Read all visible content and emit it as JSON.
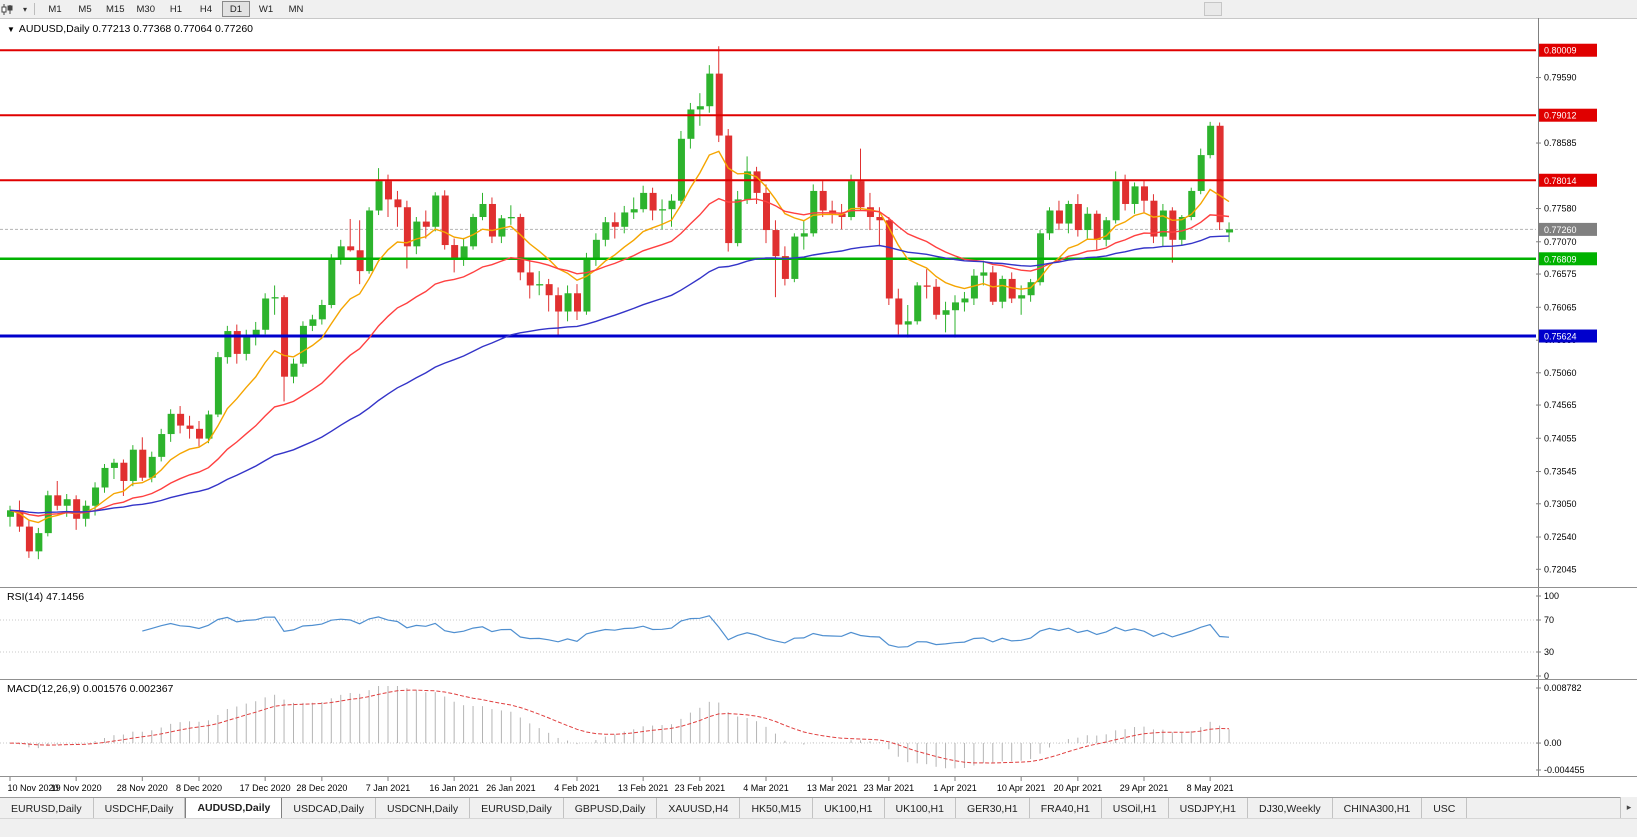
{
  "icons": {
    "dropdown": "▾",
    "symbol_marker": "▼",
    "tab_scroll_right": "▸"
  },
  "toolbar": {
    "timeframes": [
      {
        "label": "M1",
        "active": false
      },
      {
        "label": "M5",
        "active": false
      },
      {
        "label": "M15",
        "active": false
      },
      {
        "label": "M30",
        "active": false
      },
      {
        "label": "H1",
        "active": false
      },
      {
        "label": "H4",
        "active": false
      },
      {
        "label": "D1",
        "active": true
      },
      {
        "label": "W1",
        "active": false
      },
      {
        "label": "MN",
        "active": false
      }
    ]
  },
  "chart_header": {
    "symbol": "AUDUSD,Daily",
    "ohlc": "0.77213 0.77368 0.77064 0.77260"
  },
  "chart_data": {
    "type": "candlestick",
    "symbol": "AUDUSD",
    "timeframe": "Daily",
    "ohlc_display": {
      "open": "0.77213",
      "high": "0.77368",
      "low": "0.77064",
      "close": "0.77260"
    },
    "colors": {
      "up": "#2db32d",
      "down": "#e03030",
      "background": "#ffffff"
    },
    "price_axis": {
      "ylim": [
        0.7185,
        0.8035
      ],
      "ticks": [
        "0.79590",
        "0.78585",
        "0.77580",
        "0.77070",
        "0.76575",
        "0.76065",
        "0.75560",
        "0.75060",
        "0.74565",
        "0.74055",
        "0.73545",
        "0.73050",
        "0.72540",
        "0.72045"
      ]
    },
    "hlines": [
      {
        "price": 0.80009,
        "label": "0.80009",
        "color": "#e00000",
        "width": 2
      },
      {
        "price": 0.79012,
        "label": "0.79012",
        "color": "#e00000",
        "width": 2
      },
      {
        "price": 0.78014,
        "label": "0.78014",
        "color": "#e00000",
        "width": 2
      },
      {
        "price": 0.76809,
        "label": "0.76809",
        "color": "#00b200",
        "width": 2.5
      },
      {
        "price": 0.75624,
        "label": "0.75624",
        "color": "#0000cc",
        "width": 3
      }
    ],
    "current_price": {
      "price": 0.7726,
      "label": "0.77260",
      "box_color": "#808080"
    },
    "moving_averages": [
      {
        "period": 10,
        "color": "#f5a500"
      },
      {
        "period": 25,
        "color": "#ff4040"
      },
      {
        "period": 60,
        "color": "#3434c8"
      }
    ],
    "rsi": {
      "name": "RSI(14)",
      "value": "47.1456",
      "period": 14,
      "color": "#4f8fd0",
      "levels": [
        "100",
        "70",
        "30",
        "0"
      ]
    },
    "macd": {
      "name": "MACD(12,26,9)",
      "values": "0.001576 0.002367",
      "fast": 12,
      "slow": 26,
      "signal": 9,
      "ymax": 0.008782,
      "ymin": -0.004455,
      "axis_labels": [
        "0.008782",
        "0.00",
        "-0.004455"
      ]
    },
    "date_labels": [
      {
        "label": "10 Nov 2020",
        "index": 0
      },
      {
        "label": "19 Nov 2020",
        "index": 7
      },
      {
        "label": "28 Nov 2020",
        "index": 14
      },
      {
        "label": "8 Dec 2020",
        "index": 20
      },
      {
        "label": "17 Dec 2020",
        "index": 27
      },
      {
        "label": "28 Dec 2020",
        "index": 33
      },
      {
        "label": "7 Jan 2021",
        "index": 40
      },
      {
        "label": "16 Jan 2021",
        "index": 47
      },
      {
        "label": "26 Jan 2021",
        "index": 53
      },
      {
        "label": "4 Feb 2021",
        "index": 60
      },
      {
        "label": "13 Feb 2021",
        "index": 67
      },
      {
        "label": "23 Feb 2021",
        "index": 73
      },
      {
        "label": "4 Mar 2021",
        "index": 80
      },
      {
        "label": "13 Mar 2021",
        "index": 87
      },
      {
        "label": "23 Mar 2021",
        "index": 93
      },
      {
        "label": "1 Apr 2021",
        "index": 100
      },
      {
        "label": "10 Apr 2021",
        "index": 107
      },
      {
        "label": "20 Apr 2021",
        "index": 113
      },
      {
        "label": "29 Apr 2021",
        "index": 120
      },
      {
        "label": "8 May 2021",
        "index": 127
      }
    ],
    "candles": [
      [
        "2020-11-10",
        0.7285,
        0.7302,
        0.727,
        0.7295
      ],
      [
        "2020-11-11",
        0.7295,
        0.731,
        0.7262,
        0.727
      ],
      [
        "2020-11-12",
        0.727,
        0.728,
        0.7222,
        0.7232
      ],
      [
        "2020-11-13",
        0.7232,
        0.7268,
        0.722,
        0.726
      ],
      [
        "2020-11-16",
        0.726,
        0.7325,
        0.7255,
        0.7318
      ],
      [
        "2020-11-17",
        0.7318,
        0.734,
        0.7295,
        0.7302
      ],
      [
        "2020-11-18",
        0.7302,
        0.732,
        0.7285,
        0.7312
      ],
      [
        "2020-11-19",
        0.7312,
        0.7318,
        0.7265,
        0.7282
      ],
      [
        "2020-11-20",
        0.7282,
        0.731,
        0.727,
        0.7302
      ],
      [
        "2020-11-23",
        0.7302,
        0.7338,
        0.7287,
        0.733
      ],
      [
        "2020-11-24",
        0.733,
        0.7366,
        0.7322,
        0.736
      ],
      [
        "2020-11-25",
        0.736,
        0.7374,
        0.7343,
        0.7368
      ],
      [
        "2020-11-26",
        0.7368,
        0.7373,
        0.7317,
        0.734
      ],
      [
        "2020-11-27",
        0.734,
        0.7395,
        0.7332,
        0.7388
      ],
      [
        "2020-11-30",
        0.7388,
        0.7407,
        0.734,
        0.7345
      ],
      [
        "2020-12-01",
        0.7345,
        0.7385,
        0.7338,
        0.7377
      ],
      [
        "2020-12-02",
        0.7377,
        0.742,
        0.737,
        0.7412
      ],
      [
        "2020-12-03",
        0.7412,
        0.745,
        0.74,
        0.7443
      ],
      [
        "2020-12-04",
        0.7443,
        0.7455,
        0.7413,
        0.7425
      ],
      [
        "2020-12-07",
        0.7425,
        0.744,
        0.7405,
        0.742
      ],
      [
        "2020-12-08",
        0.742,
        0.7432,
        0.7393,
        0.7405
      ],
      [
        "2020-12-09",
        0.7405,
        0.7448,
        0.7398,
        0.7442
      ],
      [
        "2020-12-10",
        0.7442,
        0.7538,
        0.7438,
        0.753
      ],
      [
        "2020-12-11",
        0.753,
        0.7578,
        0.752,
        0.757
      ],
      [
        "2020-12-14",
        0.757,
        0.758,
        0.752,
        0.7535
      ],
      [
        "2020-12-15",
        0.7535,
        0.7572,
        0.7525,
        0.7562
      ],
      [
        "2020-12-16",
        0.7562,
        0.7584,
        0.7548,
        0.7572
      ],
      [
        "2020-12-17",
        0.7572,
        0.7628,
        0.7565,
        0.762
      ],
      [
        "2020-12-18",
        0.762,
        0.764,
        0.7595,
        0.7622
      ],
      [
        "2020-12-21",
        0.7622,
        0.7625,
        0.7462,
        0.75
      ],
      [
        "2020-12-22",
        0.75,
        0.7528,
        0.749,
        0.752
      ],
      [
        "2020-12-23",
        0.752,
        0.7585,
        0.7515,
        0.7578
      ],
      [
        "2020-12-24",
        0.7578,
        0.7595,
        0.757,
        0.7588
      ],
      [
        "2020-12-28",
        0.7588,
        0.7618,
        0.758,
        0.761
      ],
      [
        "2020-12-29",
        0.761,
        0.7688,
        0.7605,
        0.768
      ],
      [
        "2020-12-30",
        0.768,
        0.771,
        0.7672,
        0.77
      ],
      [
        "2020-12-31",
        0.77,
        0.7742,
        0.7692,
        0.7694
      ],
      [
        "2021-01-04",
        0.7694,
        0.774,
        0.7642,
        0.7662
      ],
      [
        "2021-01-05",
        0.7662,
        0.776,
        0.7658,
        0.7755
      ],
      [
        "2021-01-06",
        0.7755,
        0.782,
        0.7748,
        0.78
      ],
      [
        "2021-01-07",
        0.78,
        0.781,
        0.7745,
        0.7772
      ],
      [
        "2021-01-08",
        0.7772,
        0.7785,
        0.773,
        0.776
      ],
      [
        "2021-01-11",
        0.776,
        0.777,
        0.7666,
        0.77
      ],
      [
        "2021-01-12",
        0.77,
        0.7745,
        0.7688,
        0.7738
      ],
      [
        "2021-01-13",
        0.7738,
        0.7755,
        0.7712,
        0.773
      ],
      [
        "2021-01-14",
        0.773,
        0.7783,
        0.7723,
        0.7778
      ],
      [
        "2021-01-15",
        0.7778,
        0.7786,
        0.7695,
        0.7702
      ],
      [
        "2021-01-18",
        0.7702,
        0.7712,
        0.766,
        0.768
      ],
      [
        "2021-01-19",
        0.768,
        0.7713,
        0.767,
        0.77
      ],
      [
        "2021-01-20",
        0.77,
        0.775,
        0.7695,
        0.7745
      ],
      [
        "2021-01-21",
        0.7745,
        0.7782,
        0.774,
        0.7765
      ],
      [
        "2021-01-22",
        0.7765,
        0.7775,
        0.7705,
        0.7715
      ],
      [
        "2021-01-25",
        0.7715,
        0.7748,
        0.7705,
        0.7743
      ],
      [
        "2021-01-26",
        0.7743,
        0.7763,
        0.7733,
        0.7745
      ],
      [
        "2021-01-27",
        0.7745,
        0.775,
        0.7648,
        0.766
      ],
      [
        "2021-01-28",
        0.766,
        0.768,
        0.762,
        0.764
      ],
      [
        "2021-01-29",
        0.764,
        0.7662,
        0.7625,
        0.7642
      ],
      [
        "2021-02-01",
        0.7642,
        0.765,
        0.76,
        0.7625
      ],
      [
        "2021-02-02",
        0.7625,
        0.7637,
        0.7563,
        0.76
      ],
      [
        "2021-02-03",
        0.76,
        0.764,
        0.7585,
        0.7628
      ],
      [
        "2021-02-04",
        0.7628,
        0.7642,
        0.7587,
        0.76
      ],
      [
        "2021-02-05",
        0.76,
        0.769,
        0.7595,
        0.768
      ],
      [
        "2021-02-08",
        0.768,
        0.772,
        0.767,
        0.771
      ],
      [
        "2021-02-09",
        0.771,
        0.7745,
        0.77,
        0.7737
      ],
      [
        "2021-02-10",
        0.7737,
        0.7752,
        0.7712,
        0.773
      ],
      [
        "2021-02-11",
        0.773,
        0.7762,
        0.772,
        0.7752
      ],
      [
        "2021-02-12",
        0.7752,
        0.7775,
        0.7742,
        0.7757
      ],
      [
        "2021-02-15",
        0.7757,
        0.7793,
        0.7752,
        0.7782
      ],
      [
        "2021-02-16",
        0.7782,
        0.779,
        0.774,
        0.7755
      ],
      [
        "2021-02-17",
        0.7755,
        0.7772,
        0.7726,
        0.7757
      ],
      [
        "2021-02-18",
        0.7757,
        0.778,
        0.773,
        0.777
      ],
      [
        "2021-02-19",
        0.777,
        0.7877,
        0.7765,
        0.7865
      ],
      [
        "2021-02-22",
        0.7865,
        0.792,
        0.785,
        0.791
      ],
      [
        "2021-02-23",
        0.791,
        0.7935,
        0.7885,
        0.7915
      ],
      [
        "2021-02-24",
        0.7915,
        0.7978,
        0.7905,
        0.7965
      ],
      [
        "2021-02-25",
        0.7965,
        0.8007,
        0.786,
        0.787
      ],
      [
        "2021-02-26",
        0.787,
        0.788,
        0.7692,
        0.7705
      ],
      [
        "2021-03-01",
        0.7705,
        0.7785,
        0.77,
        0.7772
      ],
      [
        "2021-03-02",
        0.7772,
        0.7838,
        0.7765,
        0.7815
      ],
      [
        "2021-03-03",
        0.7815,
        0.7822,
        0.7765,
        0.7782
      ],
      [
        "2021-03-04",
        0.7782,
        0.7795,
        0.7705,
        0.7725
      ],
      [
        "2021-03-05",
        0.7725,
        0.774,
        0.7622,
        0.7685
      ],
      [
        "2021-03-08",
        0.7685,
        0.77,
        0.764,
        0.765
      ],
      [
        "2021-03-09",
        0.765,
        0.772,
        0.7645,
        0.7715
      ],
      [
        "2021-03-10",
        0.7715,
        0.774,
        0.7695,
        0.772
      ],
      [
        "2021-03-11",
        0.772,
        0.7795,
        0.7715,
        0.7785
      ],
      [
        "2021-03-12",
        0.7785,
        0.78,
        0.7745,
        0.7755
      ],
      [
        "2021-03-15",
        0.7755,
        0.777,
        0.7735,
        0.775
      ],
      [
        "2021-03-16",
        0.775,
        0.7765,
        0.7726,
        0.7745
      ],
      [
        "2021-03-17",
        0.7745,
        0.781,
        0.774,
        0.78
      ],
      [
        "2021-03-18",
        0.78,
        0.785,
        0.7755,
        0.776
      ],
      [
        "2021-03-19",
        0.776,
        0.7782,
        0.7725,
        0.7745
      ],
      [
        "2021-03-22",
        0.7745,
        0.776,
        0.77,
        0.774
      ],
      [
        "2021-03-23",
        0.774,
        0.7745,
        0.761,
        0.762
      ],
      [
        "2021-03-24",
        0.762,
        0.7635,
        0.7565,
        0.758
      ],
      [
        "2021-03-25",
        0.758,
        0.761,
        0.756,
        0.7585
      ],
      [
        "2021-03-26",
        0.7585,
        0.7645,
        0.758,
        0.764
      ],
      [
        "2021-03-29",
        0.764,
        0.7665,
        0.762,
        0.7638
      ],
      [
        "2021-03-30",
        0.7638,
        0.765,
        0.7588,
        0.7595
      ],
      [
        "2021-03-31",
        0.7595,
        0.7615,
        0.7568,
        0.7602
      ],
      [
        "2021-04-01",
        0.7602,
        0.7625,
        0.756,
        0.7614
      ],
      [
        "2021-04-02",
        0.7614,
        0.763,
        0.76,
        0.762
      ],
      [
        "2021-04-05",
        0.762,
        0.7665,
        0.761,
        0.7655
      ],
      [
        "2021-04-06",
        0.7655,
        0.7678,
        0.764,
        0.766
      ],
      [
        "2021-04-07",
        0.766,
        0.767,
        0.761,
        0.7615
      ],
      [
        "2021-04-08",
        0.7615,
        0.7655,
        0.7605,
        0.765
      ],
      [
        "2021-04-09",
        0.765,
        0.766,
        0.7613,
        0.762
      ],
      [
        "2021-04-12",
        0.762,
        0.764,
        0.7595,
        0.7625
      ],
      [
        "2021-04-13",
        0.7625,
        0.765,
        0.7615,
        0.7645
      ],
      [
        "2021-04-14",
        0.7645,
        0.7725,
        0.764,
        0.772
      ],
      [
        "2021-04-15",
        0.772,
        0.776,
        0.771,
        0.7755
      ],
      [
        "2021-04-16",
        0.7755,
        0.777,
        0.7725,
        0.7735
      ],
      [
        "2021-04-19",
        0.7735,
        0.777,
        0.772,
        0.7765
      ],
      [
        "2021-04-20",
        0.7765,
        0.778,
        0.7715,
        0.7725
      ],
      [
        "2021-04-21",
        0.7725,
        0.776,
        0.771,
        0.775
      ],
      [
        "2021-04-22",
        0.775,
        0.7755,
        0.7695,
        0.771
      ],
      [
        "2021-04-23",
        0.771,
        0.7745,
        0.77,
        0.774
      ],
      [
        "2021-04-26",
        0.774,
        0.7815,
        0.7735,
        0.78
      ],
      [
        "2021-04-27",
        0.78,
        0.781,
        0.7755,
        0.7765
      ],
      [
        "2021-04-28",
        0.7765,
        0.7798,
        0.775,
        0.7792
      ],
      [
        "2021-04-29",
        0.7792,
        0.78,
        0.7752,
        0.777
      ],
      [
        "2021-04-30",
        0.777,
        0.778,
        0.7705,
        0.7715
      ],
      [
        "2021-05-03",
        0.7715,
        0.7765,
        0.77,
        0.7755
      ],
      [
        "2021-05-04",
        0.7755,
        0.776,
        0.7675,
        0.771
      ],
      [
        "2021-05-05",
        0.771,
        0.7748,
        0.7702,
        0.7745
      ],
      [
        "2021-05-06",
        0.7745,
        0.779,
        0.774,
        0.7785
      ],
      [
        "2021-05-07",
        0.7785,
        0.785,
        0.778,
        0.784
      ],
      [
        "2021-05-10",
        0.784,
        0.7891,
        0.7835,
        0.7885
      ],
      [
        "2021-05-11",
        0.7885,
        0.789,
        0.7725,
        0.7737
      ],
      [
        "2021-05-12",
        0.77213,
        0.77368,
        0.77064,
        0.7726
      ]
    ]
  },
  "tabs": {
    "items": [
      {
        "label": "EURUSD,Daily",
        "active": false
      },
      {
        "label": "USDCHF,Daily",
        "active": false
      },
      {
        "label": "AUDUSD,Daily",
        "active": true
      },
      {
        "label": "USDCAD,Daily",
        "active": false
      },
      {
        "label": "USDCNH,Daily",
        "active": false
      },
      {
        "label": "EURUSD,Daily",
        "active": false
      },
      {
        "label": "GBPUSD,Daily",
        "active": false
      },
      {
        "label": "XAUUSD,H4",
        "active": false
      },
      {
        "label": "HK50,M15",
        "active": false
      },
      {
        "label": "UK100,H1",
        "active": false
      },
      {
        "label": "UK100,H1",
        "active": false
      },
      {
        "label": "GER30,H1",
        "active": false
      },
      {
        "label": "FRA40,H1",
        "active": false
      },
      {
        "label": "USOil,H1",
        "active": false
      },
      {
        "label": "USDJPY,H1",
        "active": false
      },
      {
        "label": "DJ30,Weekly",
        "active": false
      },
      {
        "label": "CHINA300,H1",
        "active": false
      },
      {
        "label": "USC",
        "active": false
      }
    ]
  }
}
